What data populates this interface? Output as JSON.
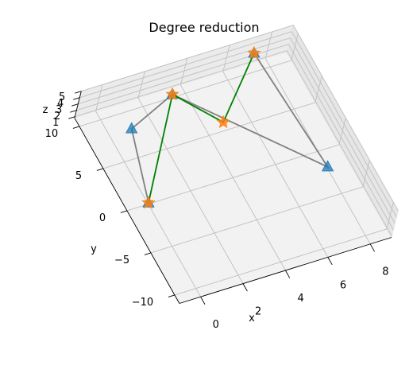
{
  "chart_data": {
    "type": "scatter3d",
    "title": "Degree reduction",
    "xlabel": "x",
    "ylabel": "y",
    "zlabel": "z",
    "xlim": [
      -1,
      9
    ],
    "ylim": [
      -11,
      11
    ],
    "zlim": [
      0.8,
      5
    ],
    "x_ticks": [
      "0",
      "2",
      "4",
      "6",
      "8"
    ],
    "y_ticks": [
      "−10",
      "−5",
      "0",
      "5",
      "10"
    ],
    "z_ticks": [
      "1",
      "2",
      "3",
      "4",
      "5"
    ],
    "grid": true,
    "series": [
      {
        "marker": "triangle",
        "color": "#1f77b4",
        "line_color": "#808080",
        "points": [
          {
            "x": 0,
            "y": 0,
            "z": 1
          },
          {
            "x": 1,
            "y": 8,
            "z": 1
          },
          {
            "x": 3,
            "y": 9,
            "z": 3
          },
          {
            "x": 8,
            "y": -2,
            "z": 1
          },
          {
            "x": 7,
            "y": 10,
            "z": 4
          }
        ]
      },
      {
        "marker": "star",
        "color": "#ff7f0e",
        "line_color": "#008000",
        "points": [
          {
            "x": 0,
            "y": 0,
            "z": 1
          },
          {
            "x": 3,
            "y": 9,
            "z": 3
          },
          {
            "x": 4.2,
            "y": 4,
            "z": 4
          },
          {
            "x": 7,
            "y": 10,
            "z": 4
          }
        ]
      }
    ]
  }
}
